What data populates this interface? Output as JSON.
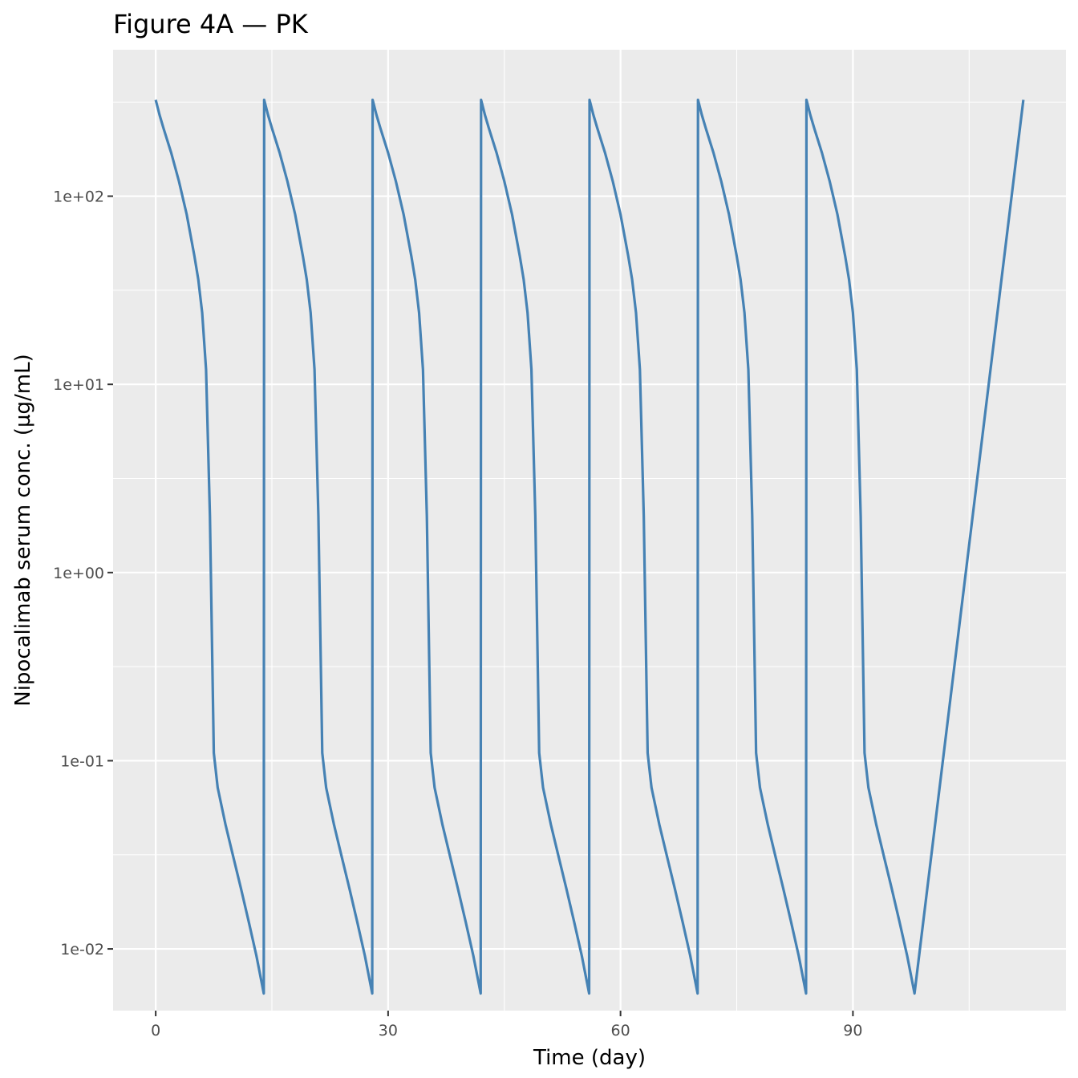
{
  "chart_data": {
    "type": "line",
    "title": "Figure 4A — PK",
    "xlabel": "Time (day)",
    "ylabel": "Nipocalimab serum conc. (µg/mL)",
    "y_scale": "log10",
    "xlim": [
      -5.5,
      117.5
    ],
    "ylim": [
      0.0047,
      600
    ],
    "x_ticks": [
      0,
      30,
      60,
      90
    ],
    "x_tick_labels": [
      "0",
      "30",
      "60",
      "90"
    ],
    "y_ticks": [
      0.01,
      0.1,
      1,
      10,
      100
    ],
    "y_tick_labels": [
      "1e-02",
      "1e-01",
      "1e+00",
      "1e+01",
      "1e+02"
    ],
    "grid": true,
    "line_color": "#4682b4",
    "panel_color": "#ebebeb",
    "dosing_interval_days": 14,
    "n_doses": 8,
    "series": [
      {
        "cycle_profile": {
          "t": [
            0,
            0.5,
            1,
            2,
            3,
            4,
            4.5,
            5,
            5.5,
            6,
            6.5,
            7,
            7.5,
            8,
            9,
            10,
            11,
            12,
            13,
            13.95
          ],
          "conc": [
            325,
            270,
            230,
            170,
            120,
            80,
            62,
            48,
            36,
            24,
            12,
            2,
            0.11,
            0.072,
            0.046,
            0.031,
            0.021,
            0.014,
            0.0092,
            0.0058
          ]
        },
        "final_dose": {
          "t": 112,
          "conc": 325
        }
      }
    ]
  }
}
